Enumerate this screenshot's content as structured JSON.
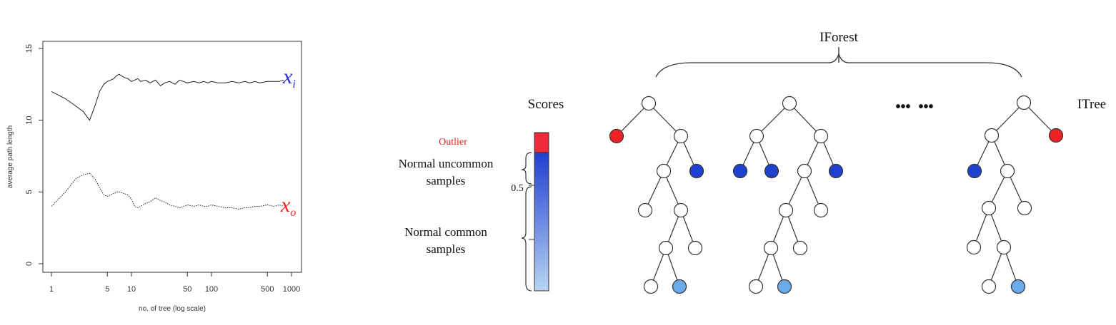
{
  "chart_data": {
    "type": "line",
    "xlabel": "no. of tree (log scale)",
    "ylabel": "average path length",
    "xscale": "log",
    "xlim": [
      1,
      1000
    ],
    "ylim": [
      0,
      15
    ],
    "xticks": [
      "1",
      "5",
      "10",
      "50",
      "100",
      "500",
      "1000"
    ],
    "yticks": [
      "0",
      "5",
      "10",
      "15"
    ],
    "grid": false,
    "series": [
      {
        "name": "x_i",
        "label_main": "x",
        "label_sub": "i",
        "color": "#2233dd",
        "line_color": "#222222",
        "dash": "solid",
        "x": [
          1,
          1.5,
          2,
          2.5,
          3,
          3.5,
          4,
          4.5,
          5,
          5.5,
          6,
          6.5,
          7,
          8,
          9,
          10,
          11,
          12,
          13,
          15,
          17,
          20,
          23,
          26,
          30,
          35,
          40,
          50,
          60,
          70,
          80,
          90,
          100,
          120,
          150,
          180,
          220,
          260,
          300,
          350,
          400,
          500,
          600,
          700,
          800
        ],
        "y": [
          12.0,
          11.5,
          11.0,
          10.6,
          10.0,
          11.0,
          12.0,
          12.5,
          12.7,
          12.8,
          12.9,
          13.1,
          13.2,
          13.0,
          12.9,
          12.7,
          12.8,
          12.9,
          12.7,
          12.8,
          12.6,
          12.8,
          12.4,
          12.6,
          12.7,
          12.5,
          12.8,
          12.6,
          12.7,
          12.6,
          12.7,
          12.6,
          12.7,
          12.6,
          12.6,
          12.7,
          12.6,
          12.7,
          12.6,
          12.7,
          12.6,
          12.7,
          12.7,
          12.7,
          12.8
        ]
      },
      {
        "name": "x_o",
        "label_main": "x",
        "label_sub": "o",
        "color": "#ee2222",
        "line_color": "#222222",
        "dash": "dotted",
        "x": [
          1,
          1.5,
          2,
          2.5,
          3,
          3.5,
          4,
          4.5,
          5,
          5.5,
          6,
          6.5,
          7,
          8,
          9,
          10,
          11,
          12,
          13,
          15,
          17,
          20,
          23,
          26,
          30,
          35,
          40,
          50,
          60,
          70,
          80,
          90,
          100,
          120,
          150,
          180,
          220,
          260,
          300,
          350,
          400,
          500,
          600,
          700,
          800
        ],
        "y": [
          4.0,
          5.0,
          5.9,
          6.2,
          6.3,
          5.9,
          5.3,
          4.8,
          4.7,
          4.8,
          4.9,
          5.0,
          5.0,
          4.9,
          4.8,
          4.5,
          4.0,
          3.9,
          4.0,
          4.2,
          4.3,
          4.6,
          4.4,
          4.3,
          4.1,
          4.0,
          3.9,
          4.1,
          4.0,
          4.1,
          4.0,
          4.0,
          4.1,
          4.0,
          3.9,
          3.9,
          3.8,
          3.9,
          3.9,
          4.0,
          4.0,
          4.1,
          4.0,
          4.1,
          4.0
        ]
      }
    ]
  },
  "diagram": {
    "forest_label": "IForest",
    "scores_label": "Scores",
    "itree_label": "ITree",
    "ellipsis": "•••  •••",
    "outlier_label": "Outlier",
    "uncommon_line1": "Normal uncommon",
    "uncommon_line2": "samples",
    "common_line1": "Normal common",
    "common_line2": "samples",
    "half_label": "0.5",
    "colors": {
      "outlier": "#ee2222",
      "uncommon": "#2040d0",
      "common": "#6aaaea",
      "node": "#ffffff",
      "outlier_text": "#e02020"
    }
  }
}
